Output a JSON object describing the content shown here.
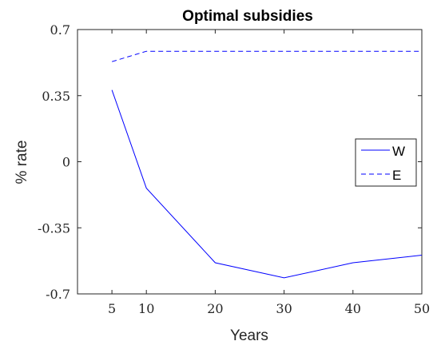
{
  "chart_data": {
    "type": "line",
    "title": "Optimal subsidies",
    "xlabel": "Years",
    "ylabel": "% rate",
    "x_ticks": [
      "5",
      "10",
      "20",
      "30",
      "40",
      "50"
    ],
    "y_ticks": [
      "0.7",
      "0.35",
      "0",
      "-0.35",
      "-0.7"
    ],
    "xlim": [
      0,
      50
    ],
    "ylim": [
      -0.7,
      0.7
    ],
    "grid": false,
    "legend_position": "right",
    "x": [
      5,
      10,
      20,
      30,
      40,
      50
    ],
    "series": [
      {
        "name": "W",
        "values": [
          0.38,
          -0.14,
          -0.535,
          -0.615,
          -0.535,
          -0.495
        ],
        "style": "solid",
        "color": "#0000ff"
      },
      {
        "name": "E",
        "values": [
          0.53,
          0.585,
          0.585,
          0.585,
          0.585,
          0.585
        ],
        "style": "dashed",
        "color": "#0000ff"
      }
    ]
  }
}
